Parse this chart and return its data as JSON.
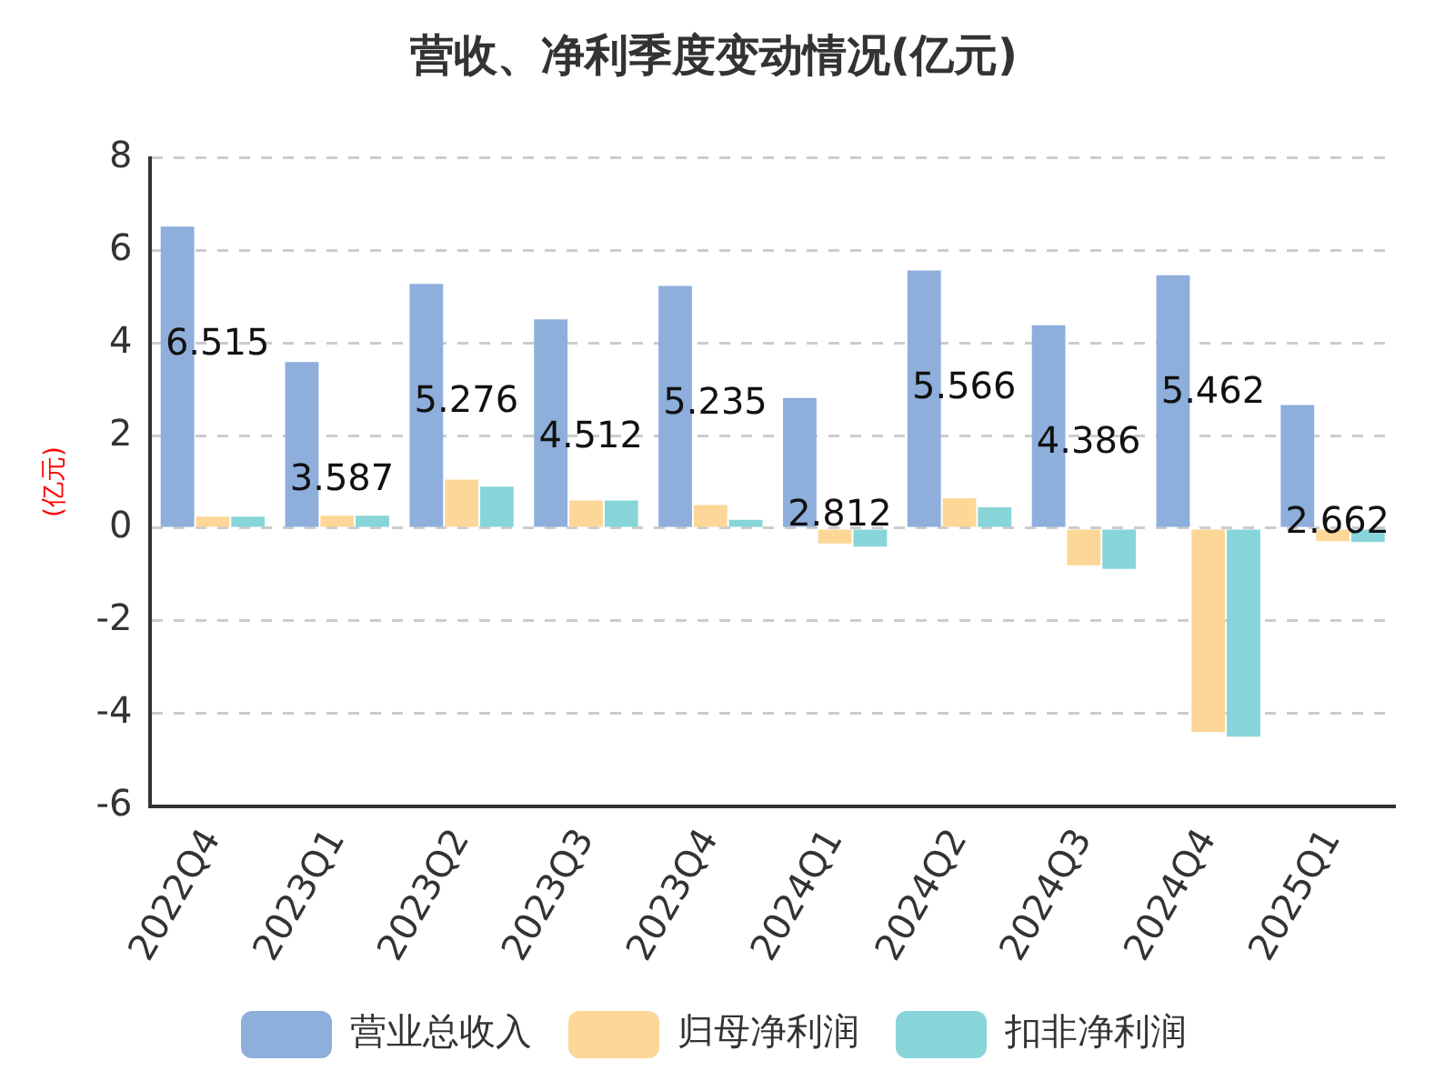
{
  "chart_data": {
    "type": "bar",
    "title": "营收、净利季度变动情况(亿元)",
    "ylabel": "(亿元)",
    "categories": [
      "2022Q4",
      "2023Q1",
      "2023Q2",
      "2023Q3",
      "2023Q4",
      "2024Q1",
      "2024Q2",
      "2024Q3",
      "2024Q4",
      "2025Q1"
    ],
    "series": [
      {
        "name": "营业总收入",
        "color": "#8eaedc",
        "values": [
          6.515,
          3.587,
          5.276,
          4.512,
          5.235,
          2.812,
          5.566,
          4.386,
          5.462,
          2.662
        ],
        "value_labels": [
          "6.515",
          "3.587",
          "5.276",
          "4.512",
          "5.235",
          "2.812",
          "5.566",
          "4.386",
          "5.462",
          "2.662"
        ]
      },
      {
        "name": "归母净利润",
        "color": "#fdd797",
        "values": [
          0.25,
          0.27,
          1.05,
          0.6,
          0.5,
          -0.33,
          0.65,
          -0.8,
          -4.4,
          -0.28
        ]
      },
      {
        "name": "扣非净利润",
        "color": "#87d5d9",
        "values": [
          0.25,
          0.27,
          0.9,
          0.6,
          0.18,
          -0.4,
          0.45,
          -0.88,
          -4.5,
          -0.3
        ]
      }
    ],
    "ylim": [
      -6,
      8
    ],
    "yticks": [
      -6,
      -4,
      -2,
      0,
      2,
      4,
      6,
      8
    ],
    "grid": "y",
    "legend": "bottom"
  }
}
